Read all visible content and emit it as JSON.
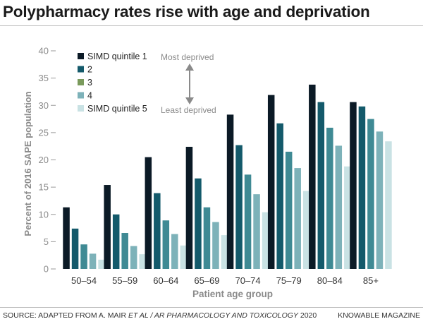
{
  "title": "Polypharmacy rates rise with age and deprivation",
  "footer": {
    "source_prefix": "SOURCE: ADAPTED FROM A. MAIR ",
    "source_italic": "ET AL / AR PHARMACOLOGY AND TOXICOLOGY",
    "source_year": " 2020",
    "credit": "KNOWABLE MAGAZINE"
  },
  "legend_notes": {
    "top": "Most deprived",
    "bottom": "Least deprived"
  },
  "colors": {
    "q1": "#0b1a26",
    "q2": "#145a6b",
    "q3": "#3f8a94",
    "q4": "#7db2b9",
    "q5": "#c9e2e4",
    "axis_text": "#8a8a8a",
    "arrow": "#8a8a8a"
  },
  "legend_swatch_colors": [
    "#0b1a26",
    "#145a6b",
    "#7a9a5c",
    "#7db2b9",
    "#c9e2e4"
  ],
  "chart_data": {
    "type": "bar",
    "title": "Polypharmacy rates rise with age and deprivation",
    "xlabel": "Patient age group",
    "ylabel": "Percent of 2016 SAPE population",
    "ylim": [
      0,
      40
    ],
    "yticks": [
      0,
      5,
      10,
      15,
      20,
      25,
      30,
      35,
      40
    ],
    "categories": [
      "50–54",
      "55–59",
      "60–64",
      "65–69",
      "70–74",
      "75–79",
      "80–84",
      "85+"
    ],
    "series": [
      {
        "name": "SIMD quintile 1",
        "values": [
          11.3,
          15.4,
          20.5,
          22.4,
          28.3,
          31.9,
          33.8,
          30.6
        ]
      },
      {
        "name": "2",
        "values": [
          7.4,
          10.0,
          13.9,
          16.6,
          22.7,
          26.7,
          30.6,
          29.8
        ]
      },
      {
        "name": "3",
        "values": [
          4.5,
          6.6,
          8.9,
          11.3,
          17.3,
          21.5,
          25.9,
          27.5
        ]
      },
      {
        "name": "4",
        "values": [
          2.8,
          4.2,
          6.4,
          8.6,
          13.7,
          18.5,
          22.6,
          25.2
        ]
      },
      {
        "name": "SIMD quintile 5",
        "values": [
          1.7,
          2.7,
          4.3,
          6.2,
          10.4,
          14.3,
          18.8,
          23.4
        ]
      }
    ],
    "legend_position": "top-left"
  }
}
